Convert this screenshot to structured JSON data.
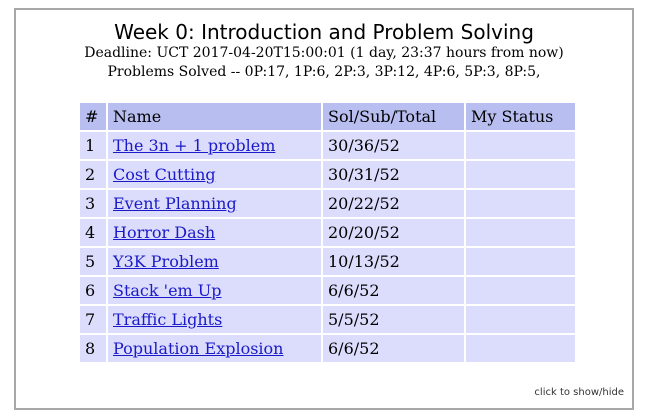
{
  "header": {
    "title": "Week 0: Introduction and Problem Solving",
    "deadline": "Deadline: UCT 2017-04-20T15:00:01 (1 day, 23:37 hours from now)",
    "solved": "Problems Solved -- 0P:17, 1P:6, 2P:3, 3P:12, 4P:6, 5P:3, 8P:5,"
  },
  "table": {
    "columns": [
      "#",
      "Name",
      "Sol/Sub/Total",
      "My Status"
    ],
    "rows": [
      {
        "num": "1",
        "name": "The 3n + 1 problem",
        "stats": "30/36/52",
        "status": ""
      },
      {
        "num": "2",
        "name": "Cost Cutting",
        "stats": "30/31/52",
        "status": ""
      },
      {
        "num": "3",
        "name": "Event Planning",
        "stats": "20/22/52",
        "status": ""
      },
      {
        "num": "4",
        "name": "Horror Dash",
        "stats": "20/20/52",
        "status": ""
      },
      {
        "num": "5",
        "name": "Y3K Problem",
        "stats": "10/13/52",
        "status": ""
      },
      {
        "num": "6",
        "name": "Stack 'em Up",
        "stats": "6/6/52",
        "status": ""
      },
      {
        "num": "7",
        "name": "Traffic Lights",
        "stats": "5/5/52",
        "status": ""
      },
      {
        "num": "8",
        "name": "Population Explosion",
        "stats": "6/6/52",
        "status": ""
      }
    ]
  },
  "toggle_label": "click to show/hide"
}
